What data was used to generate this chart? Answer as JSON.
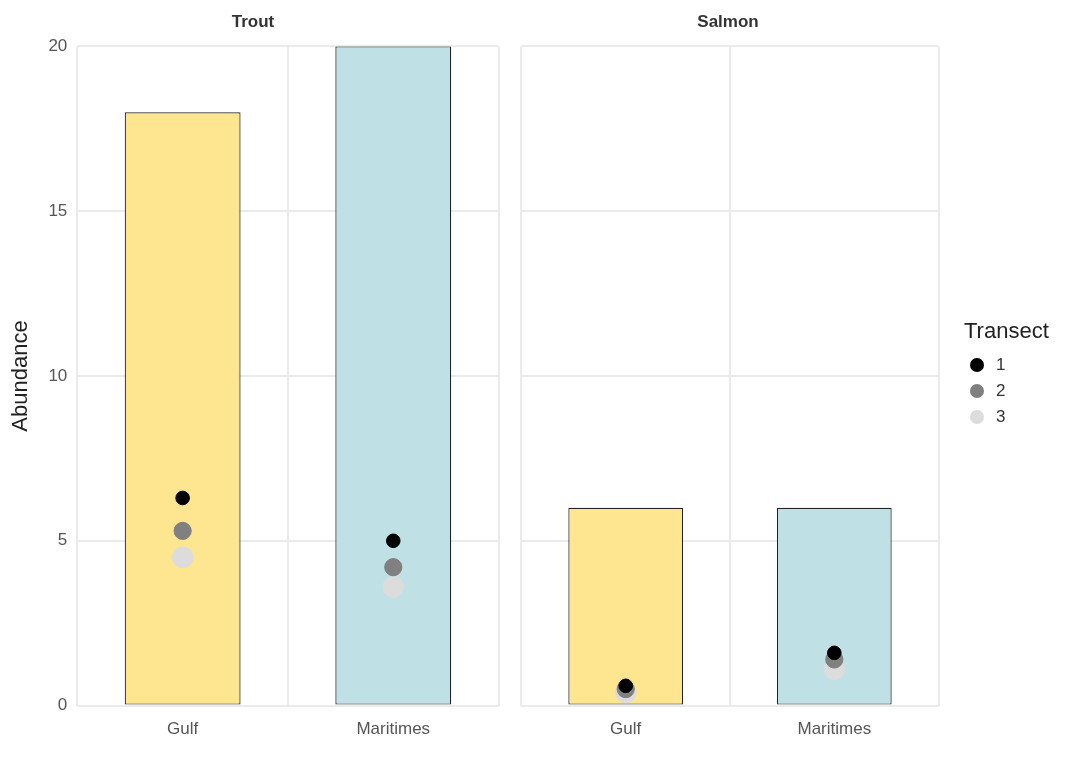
{
  "chart_data": [
    {
      "type": "scatter",
      "title": "Trout",
      "ylabel": "Abundance",
      "categories": [
        "Gulf",
        "Maritimes"
      ],
      "ylim": [
        0,
        20
      ],
      "yticks": [
        0,
        5,
        10,
        15,
        20
      ],
      "grid": true,
      "marker": "circle",
      "series": [
        {
          "type": "bar",
          "colors": [
            "#fde68f",
            "#bfe1e6"
          ],
          "base": [
            0,
            0
          ],
          "values": [
            18,
            20
          ]
        },
        {
          "color": "#000000",
          "x": [
            "Gulf",
            "Maritimes"
          ],
          "values": [
            6.3,
            5.0
          ]
        },
        {
          "color": "#808080",
          "x": [
            "Gulf",
            "Maritimes"
          ],
          "values": [
            5.3,
            4.2
          ]
        },
        {
          "color": "#dcdcdc",
          "x": [
            "Gulf",
            "Maritimes"
          ],
          "values": [
            4.5,
            3.6
          ]
        }
      ]
    },
    {
      "type": "scatter",
      "title": "Salmon",
      "categories": [
        "Gulf",
        "Maritimes"
      ],
      "ylim": [
        0,
        20
      ],
      "yticks": [
        0,
        5,
        10,
        15,
        20
      ],
      "grid": true,
      "marker": "circle",
      "tick_labels": "x",
      "legend": "right",
      "legend_title": "Transect",
      "series": [
        {
          "type": "bar",
          "colors": [
            "#fde68f",
            "#bfe1e6"
          ],
          "base": [
            0,
            0
          ],
          "values": [
            6,
            6
          ]
        },
        {
          "name": "1",
          "color": "#000000",
          "x": [
            "Gulf",
            "Maritimes"
          ],
          "values": [
            0.6,
            1.6
          ]
        },
        {
          "name": "2",
          "color": "#808080",
          "x": [
            "Gulf",
            "Maritimes"
          ],
          "values": [
            0.5,
            1.4
          ]
        },
        {
          "name": "3",
          "color": "#dcdcdc",
          "x": [
            "Gulf",
            "Maritimes"
          ],
          "values": [
            0.4,
            1.1
          ]
        }
      ]
    }
  ]
}
